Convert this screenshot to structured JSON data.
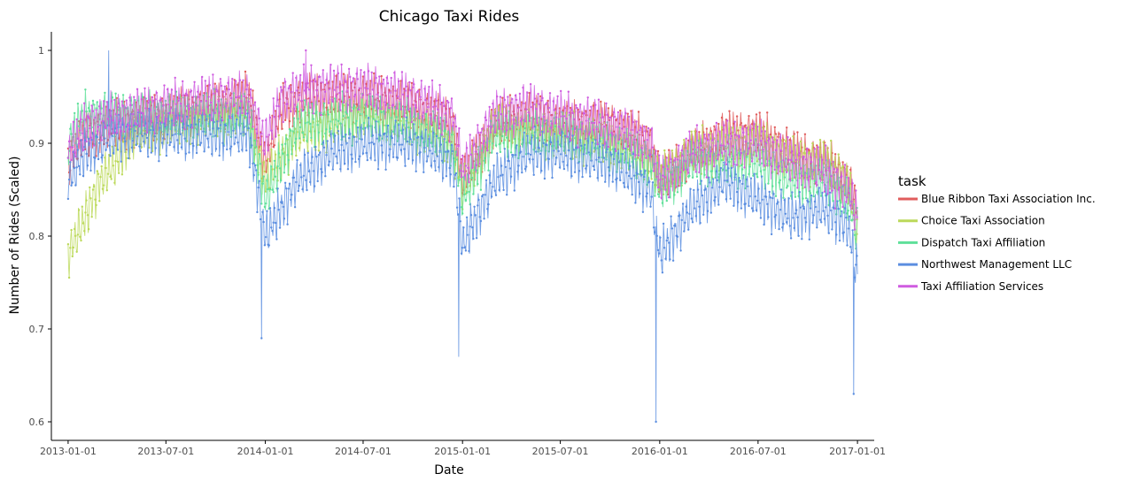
{
  "chart_data": {
    "type": "line",
    "title": "Chicago Taxi Rides",
    "xlabel": "Date",
    "ylabel": "Number of Rides (Scaled)",
    "x_range": [
      "2012-12-01",
      "2017-02-01"
    ],
    "ylim": [
      0.58,
      1.02
    ],
    "x_ticks": [
      "2013-01-01",
      "2013-07-01",
      "2014-01-01",
      "2014-07-01",
      "2015-01-01",
      "2015-07-01",
      "2016-01-01",
      "2016-07-01",
      "2017-01-01"
    ],
    "y_ticks": [
      0.6,
      0.7,
      0.8,
      0.9,
      1.0
    ],
    "y_tick_labels": [
      "0.6",
      "0.7",
      "0.8",
      "0.9",
      "1"
    ],
    "grid": false,
    "legend": {
      "title": "task",
      "position": "right"
    },
    "markers": true,
    "sampling": "daily",
    "weekly_cycle": true,
    "series": [
      {
        "name": "Blue Ribbon Taxi Association Inc.",
        "color": "#e05d5d",
        "points": [
          [
            "2013-01-01",
            0.88
          ],
          [
            "2013-02-01",
            0.91
          ],
          [
            "2013-04-01",
            0.92
          ],
          [
            "2013-07-01",
            0.93
          ],
          [
            "2013-10-01",
            0.94
          ],
          [
            "2013-12-01",
            0.95
          ],
          [
            "2014-01-01",
            0.88
          ],
          [
            "2014-02-01",
            0.94
          ],
          [
            "2014-04-01",
            0.95
          ],
          [
            "2014-07-01",
            0.95
          ],
          [
            "2014-10-01",
            0.94
          ],
          [
            "2014-12-15",
            0.92
          ],
          [
            "2015-01-01",
            0.86
          ],
          [
            "2015-03-01",
            0.92
          ],
          [
            "2015-05-01",
            0.93
          ],
          [
            "2015-07-01",
            0.92
          ],
          [
            "2015-10-01",
            0.92
          ],
          [
            "2015-12-15",
            0.9
          ],
          [
            "2016-01-01",
            0.86
          ],
          [
            "2016-03-01",
            0.89
          ],
          [
            "2016-05-01",
            0.91
          ],
          [
            "2016-07-01",
            0.91
          ],
          [
            "2016-09-01",
            0.89
          ],
          [
            "2016-11-01",
            0.88
          ],
          [
            "2016-12-15",
            0.86
          ],
          [
            "2017-01-01",
            0.83
          ]
        ]
      },
      {
        "name": "Choice Taxi Association",
        "color": "#bcd95a",
        "points": [
          [
            "2013-01-01",
            0.78
          ],
          [
            "2013-02-01",
            0.82
          ],
          [
            "2013-03-01",
            0.86
          ],
          [
            "2013-04-01",
            0.88
          ],
          [
            "2013-05-01",
            0.91
          ],
          [
            "2013-07-01",
            0.92
          ],
          [
            "2013-10-01",
            0.93
          ],
          [
            "2013-12-01",
            0.93
          ],
          [
            "2014-01-01",
            0.86
          ],
          [
            "2014-03-01",
            0.91
          ],
          [
            "2014-07-01",
            0.93
          ],
          [
            "2014-10-01",
            0.92
          ],
          [
            "2014-12-15",
            0.9
          ],
          [
            "2015-01-01",
            0.85
          ],
          [
            "2015-03-01",
            0.92
          ],
          [
            "2015-07-01",
            0.91
          ],
          [
            "2015-10-01",
            0.9
          ],
          [
            "2015-12-15",
            0.88
          ],
          [
            "2016-01-01",
            0.86
          ],
          [
            "2016-03-01",
            0.89
          ],
          [
            "2016-07-01",
            0.9
          ],
          [
            "2016-09-01",
            0.88
          ],
          [
            "2016-11-01",
            0.88
          ],
          [
            "2016-12-15",
            0.86
          ],
          [
            "2017-01-01",
            0.8
          ]
        ]
      },
      {
        "name": "Dispatch Taxi Affiliation",
        "color": "#5fe09a",
        "points": [
          [
            "2013-01-01",
            0.9
          ],
          [
            "2013-02-01",
            0.93
          ],
          [
            "2013-04-01",
            0.93
          ],
          [
            "2013-07-01",
            0.93
          ],
          [
            "2013-10-01",
            0.93
          ],
          [
            "2013-12-01",
            0.93
          ],
          [
            "2014-01-01",
            0.84
          ],
          [
            "2014-03-01",
            0.92
          ],
          [
            "2014-07-01",
            0.93
          ],
          [
            "2014-10-01",
            0.92
          ],
          [
            "2014-12-15",
            0.9
          ],
          [
            "2015-01-01",
            0.84
          ],
          [
            "2015-03-01",
            0.91
          ],
          [
            "2015-07-01",
            0.91
          ],
          [
            "2015-10-01",
            0.9
          ],
          [
            "2015-12-15",
            0.88
          ],
          [
            "2016-01-01",
            0.85
          ],
          [
            "2016-03-01",
            0.88
          ],
          [
            "2016-07-01",
            0.88
          ],
          [
            "2016-09-01",
            0.86
          ],
          [
            "2016-11-01",
            0.86
          ],
          [
            "2016-12-15",
            0.84
          ],
          [
            "2017-01-01",
            0.8
          ]
        ]
      },
      {
        "name": "Northwest Management LLC",
        "color": "#5b8ee0",
        "points": [
          [
            "2013-01-01",
            0.86
          ],
          [
            "2013-02-01",
            0.89
          ],
          [
            "2013-04-01",
            0.91
          ],
          [
            "2013-07-01",
            0.91
          ],
          [
            "2013-10-01",
            0.91
          ],
          [
            "2013-12-01",
            0.91
          ],
          [
            "2014-01-01",
            0.8
          ],
          [
            "2014-03-01",
            0.86
          ],
          [
            "2014-05-01",
            0.89
          ],
          [
            "2014-07-01",
            0.9
          ],
          [
            "2014-10-01",
            0.9
          ],
          [
            "2014-12-15",
            0.88
          ],
          [
            "2015-01-01",
            0.79
          ],
          [
            "2015-03-01",
            0.86
          ],
          [
            "2015-05-01",
            0.89
          ],
          [
            "2015-07-01",
            0.89
          ],
          [
            "2015-10-01",
            0.88
          ],
          [
            "2015-12-15",
            0.85
          ],
          [
            "2016-01-01",
            0.78
          ],
          [
            "2016-03-01",
            0.83
          ],
          [
            "2016-05-01",
            0.86
          ],
          [
            "2016-07-01",
            0.84
          ],
          [
            "2016-09-01",
            0.82
          ],
          [
            "2016-11-01",
            0.83
          ],
          [
            "2016-12-15",
            0.81
          ],
          [
            "2017-01-01",
            0.76
          ]
        ],
        "dips": [
          [
            "2013-12-25",
            0.69
          ],
          [
            "2014-12-25",
            0.67
          ],
          [
            "2015-12-25",
            0.6
          ],
          [
            "2016-12-25",
            0.63
          ]
        ],
        "peaks": [
          [
            "2013-03-17",
            1.0
          ]
        ]
      },
      {
        "name": "Taxi Affiliation Services",
        "color": "#cf5ce0",
        "points": [
          [
            "2013-01-01",
            0.89
          ],
          [
            "2013-02-01",
            0.92
          ],
          [
            "2013-04-01",
            0.93
          ],
          [
            "2013-07-01",
            0.94
          ],
          [
            "2013-10-01",
            0.95
          ],
          [
            "2013-12-01",
            0.95
          ],
          [
            "2014-01-01",
            0.9
          ],
          [
            "2014-02-01",
            0.95
          ],
          [
            "2014-04-01",
            0.96
          ],
          [
            "2014-07-01",
            0.96
          ],
          [
            "2014-10-01",
            0.95
          ],
          [
            "2014-12-15",
            0.93
          ],
          [
            "2015-01-01",
            0.87
          ],
          [
            "2015-03-01",
            0.93
          ],
          [
            "2015-05-01",
            0.94
          ],
          [
            "2015-07-01",
            0.93
          ],
          [
            "2015-10-01",
            0.92
          ],
          [
            "2015-12-15",
            0.9
          ],
          [
            "2016-01-01",
            0.86
          ],
          [
            "2016-03-01",
            0.89
          ],
          [
            "2016-05-01",
            0.9
          ],
          [
            "2016-07-01",
            0.9
          ],
          [
            "2016-09-01",
            0.88
          ],
          [
            "2016-11-01",
            0.87
          ],
          [
            "2016-12-15",
            0.85
          ],
          [
            "2017-01-01",
            0.82
          ]
        ],
        "peaks": [
          [
            "2014-03-17",
            1.0
          ]
        ]
      }
    ]
  }
}
